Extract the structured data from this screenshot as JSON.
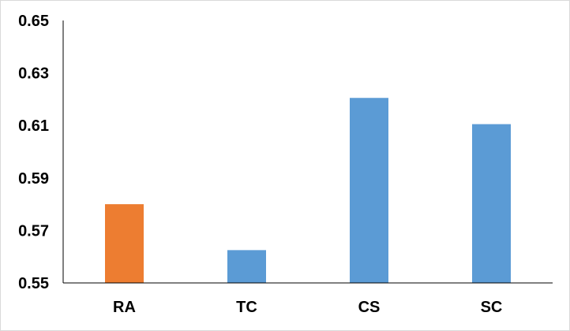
{
  "chart_data": {
    "type": "bar",
    "title": "",
    "xlabel": "",
    "ylabel": "",
    "categories": [
      "RA",
      "TC",
      "CS",
      "SC"
    ],
    "values": [
      0.58,
      0.5625,
      0.6205,
      0.6105
    ],
    "ylim": [
      0.55,
      0.65
    ],
    "yticks": [
      0.55,
      0.57,
      0.59,
      0.61,
      0.63,
      0.65
    ],
    "ytick_labels": [
      "0.55",
      "0.57",
      "0.59",
      "0.61",
      "0.63",
      "0.65"
    ],
    "bar_colors": [
      "#ed7d31",
      "#5b9bd5",
      "#5b9bd5",
      "#5b9bd5"
    ],
    "grid": false,
    "legend": "none"
  }
}
